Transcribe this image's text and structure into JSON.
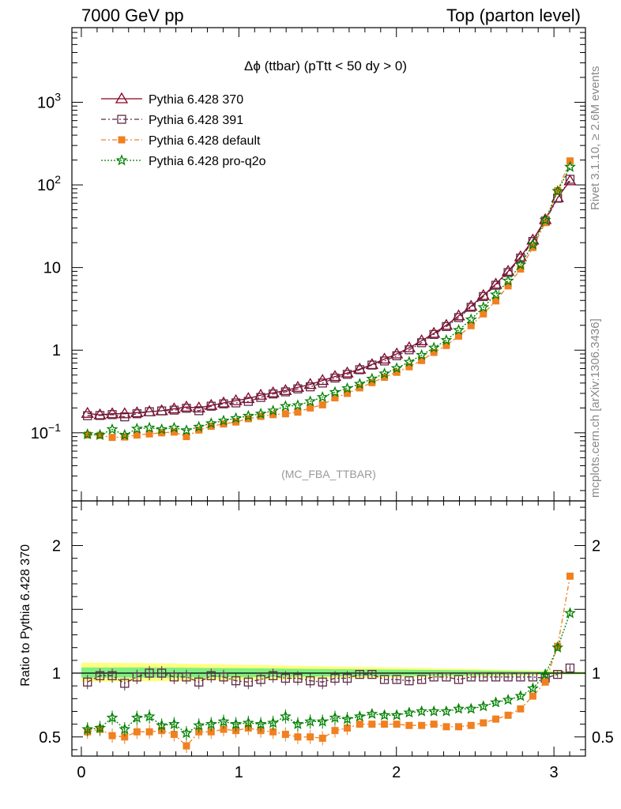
{
  "header": {
    "left": "7000 GeV pp",
    "right": "Top (parton level)"
  },
  "side_labels": {
    "top": "Rivet 3.1.10, ≥ 2.6M events",
    "bottom": "mcplots.cern.ch [arXiv:1306.3436]"
  },
  "chart_data": [
    {
      "type": "line",
      "title": "Δϕ (ttbar) (pTtt < 50 dy > 0)",
      "watermark": "(MC_FBA_TTBAR)",
      "yscale": "log",
      "xlim": [
        -0.06,
        3.2
      ],
      "ylim": [
        0.015,
        8000
      ],
      "x_ticklabels": [
        "0",
        "1",
        "2",
        "3"
      ],
      "y_ticklabels": [
        "10⁻¹",
        "1",
        "10",
        "10²",
        "10³"
      ],
      "legend_position": "top-left",
      "x": [
        0.039,
        0.118,
        0.196,
        0.275,
        0.353,
        0.432,
        0.51,
        0.589,
        0.667,
        0.746,
        0.824,
        0.903,
        0.981,
        1.06,
        1.139,
        1.217,
        1.296,
        1.374,
        1.453,
        1.531,
        1.61,
        1.688,
        1.767,
        1.845,
        1.924,
        2.002,
        2.081,
        2.16,
        2.238,
        2.317,
        2.395,
        2.474,
        2.552,
        2.631,
        2.709,
        2.788,
        2.866,
        2.945,
        3.023,
        3.102
      ],
      "series": [
        {
          "name": "Pythia 6.428 370",
          "color": "#8b0020",
          "marker": "triangle",
          "dash": "solid",
          "values": [
            0.172,
            0.165,
            0.17,
            0.17,
            0.175,
            0.18,
            0.185,
            0.195,
            0.205,
            0.2,
            0.215,
            0.23,
            0.245,
            0.26,
            0.285,
            0.305,
            0.325,
            0.355,
            0.385,
            0.43,
            0.48,
            0.53,
            0.59,
            0.67,
            0.78,
            0.9,
            1.07,
            1.3,
            1.6,
            2.0,
            2.6,
            3.4,
            4.6,
            6.3,
            9.0,
            13.5,
            21.5,
            38.0,
            70.0,
            112.0
          ]
        },
        {
          "name": "Pythia 6.428 391",
          "color": "#5e2a48",
          "marker": "square",
          "dash": "6,3,2,3",
          "values": [
            0.161,
            0.162,
            0.166,
            0.156,
            0.17,
            0.18,
            0.184,
            0.188,
            0.198,
            0.185,
            0.21,
            0.224,
            0.23,
            0.24,
            0.268,
            0.295,
            0.313,
            0.34,
            0.36,
            0.4,
            0.46,
            0.51,
            0.58,
            0.66,
            0.74,
            0.855,
            1.01,
            1.23,
            1.55,
            1.93,
            2.48,
            3.3,
            4.45,
            6.1,
            8.7,
            13.0,
            20.7,
            36.5,
            69.0,
            117.0
          ]
        },
        {
          "name": "Pythia 6.428 default",
          "color": "#f08020",
          "marker": "fsquare",
          "dash": "6,3,2,3",
          "values": [
            0.094,
            0.093,
            0.088,
            0.089,
            0.094,
            0.097,
            0.1,
            0.102,
            0.09,
            0.108,
            0.12,
            0.128,
            0.135,
            0.148,
            0.158,
            0.166,
            0.17,
            0.178,
            0.2,
            0.218,
            0.265,
            0.3,
            0.35,
            0.405,
            0.47,
            0.54,
            0.63,
            0.75,
            0.94,
            1.14,
            1.48,
            1.98,
            2.75,
            3.95,
            6.0,
            9.6,
            17.5,
            35.0,
            85.0,
            195.0
          ]
        },
        {
          "name": "Pythia 6.428 pro-q2o",
          "color": "#008000",
          "marker": "star",
          "dash": "2,2",
          "values": [
            0.096,
            0.094,
            0.11,
            0.094,
            0.112,
            0.115,
            0.11,
            0.115,
            0.107,
            0.118,
            0.13,
            0.14,
            0.15,
            0.16,
            0.17,
            0.185,
            0.21,
            0.215,
            0.24,
            0.27,
            0.31,
            0.345,
            0.39,
            0.45,
            0.52,
            0.605,
            0.72,
            0.87,
            1.07,
            1.32,
            1.75,
            2.35,
            3.3,
            4.7,
            6.9,
            10.8,
            19.0,
            37.5,
            84.0,
            165.0
          ]
        }
      ]
    },
    {
      "type": "line",
      "ylabel": "Ratio to Pythia 6.428 370",
      "xlim": [
        -0.06,
        3.2
      ],
      "ylim": [
        0.35,
        2.35
      ],
      "x_ticklabels": [
        "0",
        "1",
        "2",
        "3"
      ],
      "y_ticklabels": [
        "0.5",
        "1",
        "2"
      ],
      "band_colors": {
        "outer": "#ffff80",
        "inner": "#80ee80"
      },
      "x": [
        0.039,
        0.118,
        0.196,
        0.275,
        0.353,
        0.432,
        0.51,
        0.589,
        0.667,
        0.746,
        0.824,
        0.903,
        0.981,
        1.06,
        1.139,
        1.217,
        1.296,
        1.374,
        1.453,
        1.531,
        1.61,
        1.688,
        1.767,
        1.845,
        1.924,
        2.002,
        2.081,
        2.16,
        2.238,
        2.317,
        2.395,
        2.474,
        2.552,
        2.631,
        2.709,
        2.788,
        2.866,
        2.945,
        3.023,
        3.102
      ],
      "series": [
        {
          "name": "Pythia 6.428 391",
          "color": "#5e2a48",
          "marker": "square",
          "dash": "6,3,2,3",
          "values": [
            0.93,
            0.98,
            0.98,
            0.92,
            0.97,
            1.0,
            1.0,
            0.97,
            0.97,
            0.93,
            0.98,
            0.97,
            0.94,
            0.93,
            0.95,
            0.98,
            0.96,
            0.96,
            0.94,
            0.93,
            0.96,
            0.96,
            0.99,
            0.99,
            0.95,
            0.95,
            0.94,
            0.95,
            0.97,
            0.97,
            0.95,
            0.97,
            0.97,
            0.97,
            0.97,
            0.97,
            0.97,
            0.96,
            0.99,
            1.04
          ]
        },
        {
          "name": "Pythia 6.428 default",
          "color": "#f08020",
          "marker": "fsquare",
          "dash": "6,3,2,3",
          "values": [
            0.54,
            0.56,
            0.51,
            0.5,
            0.54,
            0.54,
            0.55,
            0.52,
            0.43,
            0.54,
            0.54,
            0.56,
            0.55,
            0.57,
            0.55,
            0.54,
            0.52,
            0.5,
            0.5,
            0.49,
            0.55,
            0.57,
            0.6,
            0.6,
            0.6,
            0.6,
            0.59,
            0.59,
            0.6,
            0.58,
            0.58,
            0.59,
            0.61,
            0.64,
            0.67,
            0.72,
            0.82,
            0.93,
            1.21,
            1.76
          ]
        },
        {
          "name": "Pythia 6.428 pro-q2o",
          "color": "#008000",
          "marker": "star",
          "dash": "2,2",
          "values": [
            0.56,
            0.57,
            0.65,
            0.56,
            0.65,
            0.66,
            0.59,
            0.6,
            0.53,
            0.59,
            0.6,
            0.62,
            0.6,
            0.61,
            0.6,
            0.61,
            0.66,
            0.6,
            0.62,
            0.62,
            0.65,
            0.64,
            0.66,
            0.68,
            0.67,
            0.67,
            0.69,
            0.7,
            0.7,
            0.7,
            0.72,
            0.72,
            0.74,
            0.77,
            0.79,
            0.82,
            0.88,
            0.99,
            1.2,
            1.47
          ]
        }
      ]
    }
  ]
}
